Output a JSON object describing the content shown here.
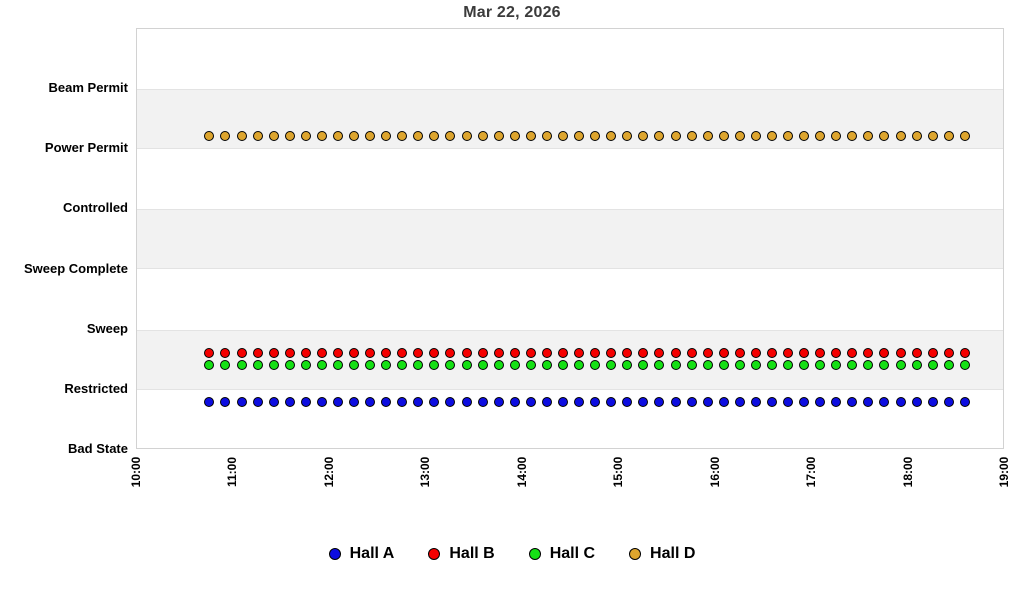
{
  "chart": {
    "title": "Mar 22, 2026"
  },
  "chart_data": {
    "type": "scatter",
    "title": "Mar 22, 2026",
    "xlabel": "",
    "ylabel": "",
    "grid": "alternating horizontal shaded rows",
    "legend_position": "bottom-center",
    "y_categories_bottom_to_top": [
      "Bad State",
      "Restricted",
      "Sweep",
      "Sweep Complete",
      "Controlled",
      "Power Permit",
      "Beam Permit"
    ],
    "shaded_rows_between_levels": [
      [
        "Beam Permit",
        "Power Permit"
      ],
      [
        "Controlled",
        "Sweep Complete"
      ],
      [
        "Sweep",
        "Restricted"
      ]
    ],
    "x_ticks": [
      "10:00",
      "11:00",
      "12:00",
      "13:00",
      "14:00",
      "15:00",
      "16:00",
      "17:00",
      "18:00",
      "19:00"
    ],
    "x_range_minutes": [
      600,
      1140
    ],
    "samples": {
      "start": "10:45",
      "end": "18:35",
      "interval_minutes": 10,
      "count": 48
    },
    "series": [
      {
        "name": "Hall A",
        "color": "#0d0de0",
        "state": "Restricted",
        "level_offset": -0.2,
        "values_note": "constant Restricted for all 48 samples"
      },
      {
        "name": "Hall B",
        "color": "#f40000",
        "state": "Restricted",
        "level_offset": 0.62,
        "values_note": "constant Restricted for all 48 samples"
      },
      {
        "name": "Hall C",
        "color": "#15e015",
        "state": "Restricted",
        "level_offset": 0.42,
        "values_note": "constant Restricted for all 48 samples"
      },
      {
        "name": "Hall D",
        "color": "#dda52e",
        "state": "Power Permit",
        "level_offset": 0.22,
        "values_note": "constant Power Permit for all 48 samples"
      }
    ],
    "colors": {
      "band_fill": "#f2f2f2",
      "band_edge": "#e3e3e3",
      "plot_border": "#d2d2d2",
      "title_text": "#3b3b3b",
      "label_text": "#000000",
      "background": "#ffffff"
    }
  }
}
